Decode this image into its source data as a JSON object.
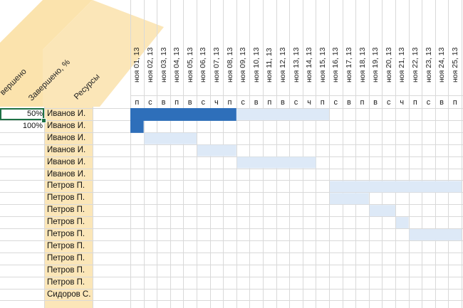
{
  "headers": {
    "completed_pct": "Завершено, %",
    "completed_partial": "вершено",
    "resources": "Ресурсы"
  },
  "days": [
    {
      "date": "ноя 01, 13",
      "dow": "п"
    },
    {
      "date": "ноя 02, 13",
      "dow": "с"
    },
    {
      "date": "ноя 03, 13",
      "dow": "в"
    },
    {
      "date": "ноя 04, 13",
      "dow": "п"
    },
    {
      "date": "ноя 05, 13",
      "dow": "в"
    },
    {
      "date": "ноя 06, 13",
      "dow": "с"
    },
    {
      "date": "ноя 07, 13",
      "dow": "ч"
    },
    {
      "date": "ноя 08, 13",
      "dow": "п"
    },
    {
      "date": "ноя 09, 13",
      "dow": "с"
    },
    {
      "date": "ноя 10, 13",
      "dow": "в"
    },
    {
      "date": "ноя 11, 13",
      "dow": "п"
    },
    {
      "date": "ноя 12, 13",
      "dow": "в"
    },
    {
      "date": "ноя 13, 13",
      "dow": "с"
    },
    {
      "date": "ноя 14, 13",
      "dow": "ч"
    },
    {
      "date": "ноя 15, 13",
      "dow": "п"
    },
    {
      "date": "ноя 16, 13",
      "dow": "с"
    },
    {
      "date": "ноя 17, 13",
      "dow": "в"
    },
    {
      "date": "ноя 18, 13",
      "dow": "п"
    },
    {
      "date": "ноя 19, 13",
      "dow": "в"
    },
    {
      "date": "ноя 20, 13",
      "dow": "с"
    },
    {
      "date": "ноя 21, 13",
      "dow": "ч"
    },
    {
      "date": "ноя 22, 13",
      "dow": "п"
    },
    {
      "date": "ноя 23, 13",
      "dow": "с"
    },
    {
      "date": "ноя 24, 13",
      "dow": "в"
    },
    {
      "date": "ноя 25, 13",
      "dow": "п"
    }
  ],
  "tasks": [
    {
      "resource": "Иванов И.",
      "completed": "50%",
      "start": 1,
      "days": 8,
      "done_days": 8,
      "total_days": 15
    },
    {
      "resource": "Иванов И.",
      "completed": "100%",
      "start": 1,
      "days": 1,
      "done_days": 1
    },
    {
      "resource": "Иванов И.",
      "completed": "",
      "start": 2,
      "days": 4,
      "done_days": 0
    },
    {
      "resource": "Иванов И.",
      "completed": "",
      "start": 6,
      "days": 3,
      "done_days": 0
    },
    {
      "resource": "Иванов И.",
      "completed": "",
      "start": 9,
      "days": 6,
      "done_days": 0
    },
    {
      "resource": "Иванов И.",
      "completed": "",
      "start": 0,
      "days": 0,
      "done_days": 0
    },
    {
      "resource": "Петров П.",
      "completed": "",
      "start": 16,
      "days": 10,
      "done_days": 0
    },
    {
      "resource": "Петров П.",
      "completed": "",
      "start": 16,
      "days": 3,
      "done_days": 0
    },
    {
      "resource": "Петров П.",
      "completed": "",
      "start": 19,
      "days": 2,
      "done_days": 0
    },
    {
      "resource": "Петров П.",
      "completed": "",
      "start": 21,
      "days": 1,
      "done_days": 0
    },
    {
      "resource": "Петров П.",
      "completed": "",
      "start": 22,
      "days": 4,
      "done_days": 0
    },
    {
      "resource": "Петров П.",
      "completed": "",
      "start": 0,
      "days": 0,
      "done_days": 0
    },
    {
      "resource": "Петров П.",
      "completed": "",
      "start": 0,
      "days": 0,
      "done_days": 0
    },
    {
      "resource": "Петров П.",
      "completed": "",
      "start": 0,
      "days": 0,
      "done_days": 0
    },
    {
      "resource": "Петров П.",
      "completed": "",
      "start": 0,
      "days": 0,
      "done_days": 0
    },
    {
      "resource": "Сидоров С.",
      "completed": "",
      "start": 0,
      "days": 0,
      "done_days": 0
    }
  ],
  "colors": {
    "header_band": "#fbe3ad",
    "resource_column": "#fbe6b8",
    "bar_done": "#2e6fba",
    "bar_planned": "#dde9f7",
    "grid": "#d9d9d9",
    "selection": "#1e7145"
  }
}
